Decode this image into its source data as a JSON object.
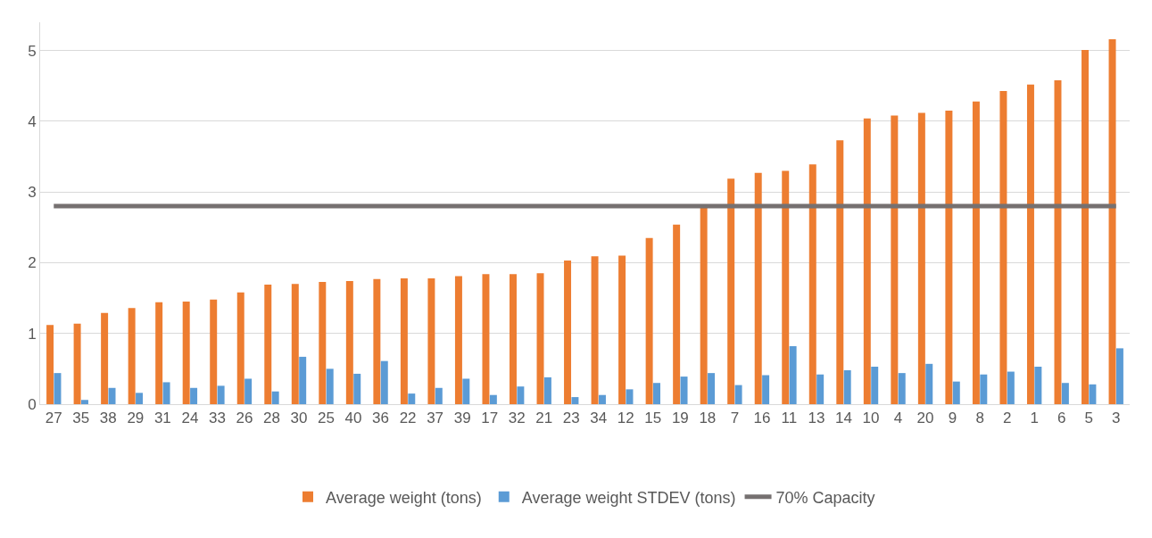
{
  "chart_data": {
    "type": "bar",
    "categories": [
      "27",
      "35",
      "38",
      "29",
      "31",
      "24",
      "33",
      "26",
      "28",
      "30",
      "25",
      "40",
      "36",
      "22",
      "37",
      "39",
      "17",
      "32",
      "21",
      "23",
      "34",
      "12",
      "15",
      "19",
      "18",
      "7",
      "16",
      "11",
      "13",
      "14",
      "10",
      "4",
      "20",
      "9",
      "8",
      "2",
      "1",
      "6",
      "5",
      "3"
    ],
    "series": [
      {
        "name": "Average weight (tons)",
        "color": "#ed7d31",
        "values": [
          1.12,
          1.14,
          1.29,
          1.36,
          1.44,
          1.45,
          1.48,
          1.58,
          1.69,
          1.7,
          1.73,
          1.74,
          1.77,
          1.78,
          1.78,
          1.81,
          1.84,
          1.84,
          1.85,
          2.03,
          2.09,
          2.1,
          2.35,
          2.54,
          2.8,
          3.19,
          3.27,
          3.3,
          3.39,
          3.73,
          4.04,
          4.08,
          4.12,
          4.15,
          4.28,
          4.43,
          4.52,
          4.58,
          5.01,
          5.16
        ]
      },
      {
        "name": "Average weight STDEV (tons)",
        "color": "#5b9bd5",
        "values": [
          0.44,
          0.06,
          0.23,
          0.16,
          0.31,
          0.23,
          0.26,
          0.36,
          0.18,
          0.67,
          0.5,
          0.43,
          0.61,
          0.15,
          0.23,
          0.36,
          0.13,
          0.25,
          0.38,
          0.1,
          0.13,
          0.21,
          0.3,
          0.39,
          0.44,
          0.27,
          0.41,
          0.82,
          0.42,
          0.48,
          0.53,
          0.44,
          0.57,
          0.32,
          0.42,
          0.46,
          0.53,
          0.3,
          0.28,
          0.79
        ]
      },
      {
        "name": "70% Capacity",
        "type": "line",
        "color": "#767171",
        "values": [
          2.8,
          2.8,
          2.8,
          2.8,
          2.8,
          2.8,
          2.8,
          2.8,
          2.8,
          2.8,
          2.8,
          2.8,
          2.8,
          2.8,
          2.8,
          2.8,
          2.8,
          2.8,
          2.8,
          2.8,
          2.8,
          2.8,
          2.8,
          2.8,
          2.8,
          2.8,
          2.8,
          2.8,
          2.8,
          2.8,
          2.8,
          2.8,
          2.8,
          2.8,
          2.8,
          2.8,
          2.8,
          2.8,
          2.8,
          2.8
        ]
      }
    ],
    "ylim": [
      0,
      5.4
    ],
    "yticks": [
      0,
      1,
      2,
      3,
      4,
      5
    ],
    "grid": "y",
    "legend": "bottom",
    "marker": "none",
    "line_style": "solid"
  }
}
